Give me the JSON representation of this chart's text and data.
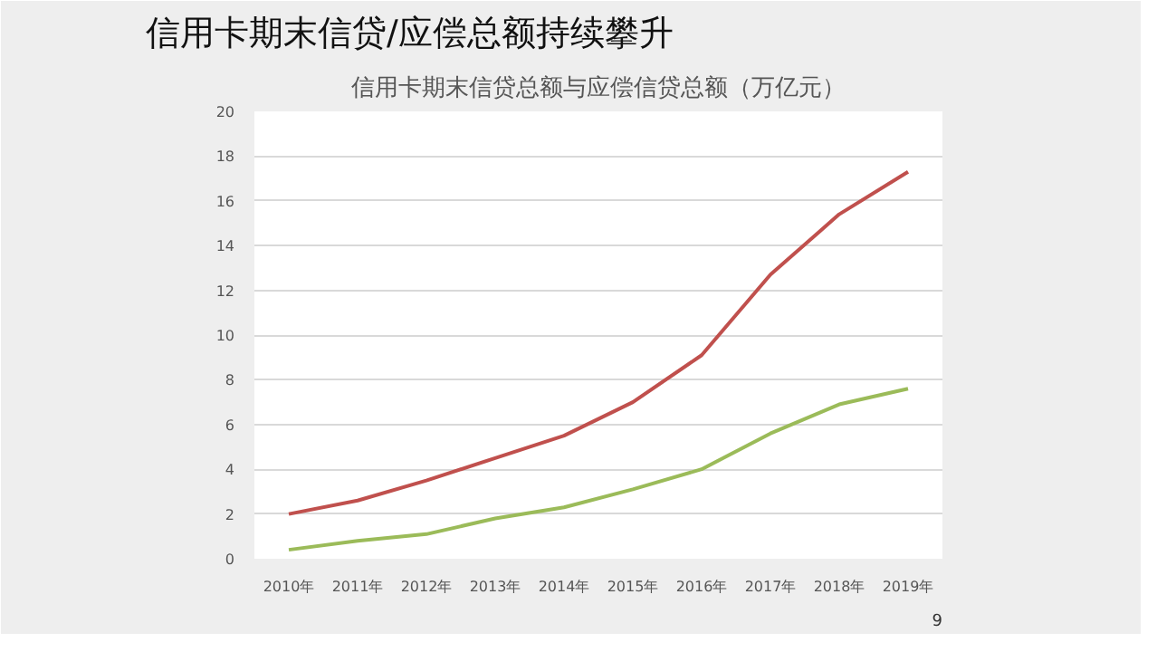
{
  "chart_data": {
    "type": "line",
    "title": "信用卡期末信贷/应偿总额持续攀升",
    "subtitle": "信用卡期末信贷总额与应偿信贷总额（万亿元）",
    "categories": [
      "2010年",
      "2011年",
      "2012年",
      "2013年",
      "2014年",
      "2015年",
      "2016年",
      "2017年",
      "2018年",
      "2019年"
    ],
    "series": [
      {
        "color": "#c0504d",
        "values": [
          2.0,
          2.6,
          3.5,
          4.5,
          5.5,
          7.0,
          9.1,
          12.7,
          15.4,
          17.3
        ]
      },
      {
        "color": "#9bbb59",
        "values": [
          0.4,
          0.8,
          1.1,
          1.8,
          2.3,
          3.1,
          4.0,
          5.6,
          6.9,
          7.6
        ]
      }
    ],
    "ylim": [
      0,
      20
    ],
    "yticks": [
      0,
      2,
      4,
      6,
      8,
      10,
      12,
      14,
      16,
      18,
      20
    ],
    "grid": "y",
    "marker": "none",
    "line_style": "solid",
    "annotations": [
      "9"
    ]
  }
}
